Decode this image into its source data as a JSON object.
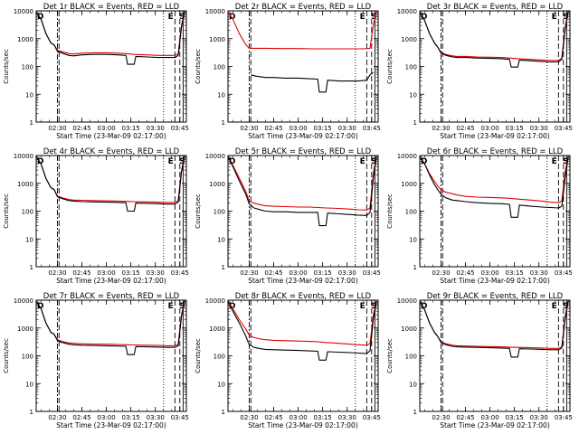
{
  "colors": {
    "events": "#000000",
    "lld": "#e00000",
    "background": "#ffffff"
  },
  "time_ticks": [
    "02:30",
    "02:45",
    "03:00",
    "03:15",
    "03:30",
    "03:45"
  ],
  "y_ticks": [
    "1",
    "10",
    "100",
    "1000",
    "10000"
  ],
  "ylabel": "Counts/sec",
  "xlabel": "Start Time (23-Mar-09 02:17:00)",
  "markers": [
    "D",
    "E",
    "S"
  ],
  "chart_data": [
    {
      "type": "line",
      "title": "Det 1r BLACK = Events, RED = LLD",
      "xlabel": "Start Time (23-Mar-09 02:17:00)",
      "ylabel": "Counts/sec",
      "ylim": [
        1,
        10000
      ],
      "yscale": "log",
      "series": [
        {
          "name": "Events",
          "x": [
            "02:17",
            "02:20",
            "02:23",
            "02:26",
            "02:28",
            "02:30",
            "02:33",
            "02:37",
            "02:40",
            "02:45",
            "02:52",
            "03:00",
            "03:07",
            "03:12",
            "03:13",
            "03:17",
            "03:18",
            "03:25",
            "03:32",
            "03:37",
            "03:42",
            "03:44",
            "03:46",
            "03:48"
          ],
          "values": [
            9000,
            5000,
            1500,
            700,
            600,
            350,
            300,
            250,
            240,
            260,
            270,
            270,
            260,
            250,
            120,
            120,
            230,
            220,
            210,
            210,
            210,
            250,
            2500,
            10000
          ]
        },
        {
          "name": "LLD",
          "x": [
            "02:17",
            "02:20",
            "02:23",
            "02:26",
            "02:28",
            "02:30",
            "02:33",
            "02:37",
            "02:40",
            "02:45",
            "02:52",
            "03:00",
            "03:07",
            "03:12",
            "03:17",
            "03:25",
            "03:32",
            "03:37",
            "03:42",
            "03:44",
            "03:46",
            "03:48"
          ],
          "values": [
            9000,
            5000,
            1500,
            700,
            600,
            380,
            340,
            290,
            280,
            300,
            310,
            310,
            300,
            290,
            270,
            260,
            250,
            250,
            250,
            280,
            3000,
            10000
          ]
        }
      ]
    },
    {
      "type": "line",
      "title": "Det 2r BLACK = Events, RED = LLD",
      "xlabel": "Start Time (23-Mar-09 02:17:00)",
      "ylabel": "Counts/sec",
      "ylim": [
        1,
        10000
      ],
      "yscale": "log",
      "series": [
        {
          "name": "Events",
          "x": [
            "02:31",
            "02:34",
            "02:40",
            "02:45",
            "02:52",
            "03:00",
            "03:07",
            "03:12",
            "03:13",
            "03:17",
            "03:18",
            "03:25",
            "03:32",
            "03:37",
            "03:42",
            "03:44",
            "03:46"
          ],
          "values": [
            50,
            45,
            40,
            40,
            38,
            38,
            36,
            35,
            12,
            12,
            32,
            30,
            30,
            30,
            32,
            50,
            60
          ]
        },
        {
          "name": "LLD",
          "x": [
            "02:17",
            "02:20",
            "02:24",
            "02:28",
            "02:30",
            "02:40",
            "02:50",
            "03:00",
            "03:10",
            "03:20",
            "03:30",
            "03:40",
            "03:44",
            "03:46",
            "03:48"
          ],
          "values": [
            9000,
            5000,
            1500,
            600,
            450,
            450,
            440,
            440,
            430,
            430,
            430,
            430,
            450,
            3000,
            10000
          ]
        }
      ]
    },
    {
      "type": "line",
      "title": "Det 3r BLACK = Events, RED = LLD",
      "xlabel": "Start Time (23-Mar-09 02:17:00)",
      "ylabel": "Counts/sec",
      "ylim": [
        1,
        10000
      ],
      "yscale": "log",
      "series": [
        {
          "name": "Events",
          "x": [
            "02:17",
            "02:20",
            "02:23",
            "02:26",
            "02:28",
            "02:30",
            "02:33",
            "02:37",
            "02:40",
            "02:45",
            "02:52",
            "03:00",
            "03:07",
            "03:12",
            "03:13",
            "03:17",
            "03:18",
            "03:25",
            "03:32",
            "03:37",
            "03:42",
            "03:44",
            "03:46",
            "03:48"
          ],
          "values": [
            9000,
            4500,
            1500,
            700,
            500,
            300,
            250,
            220,
            210,
            210,
            200,
            195,
            190,
            180,
            95,
            95,
            170,
            160,
            150,
            145,
            145,
            180,
            2000,
            10000
          ]
        },
        {
          "name": "LLD",
          "x": [
            "02:17",
            "02:20",
            "02:23",
            "02:26",
            "02:28",
            "02:30",
            "02:33",
            "02:37",
            "02:40",
            "02:45",
            "02:52",
            "03:00",
            "03:07",
            "03:12",
            "03:17",
            "03:25",
            "03:32",
            "03:37",
            "03:42",
            "03:44",
            "03:46",
            "03:48"
          ],
          "values": [
            9000,
            4500,
            1500,
            700,
            500,
            320,
            270,
            240,
            230,
            230,
            220,
            215,
            210,
            200,
            190,
            180,
            170,
            165,
            165,
            200,
            2500,
            10000
          ]
        }
      ]
    },
    {
      "type": "line",
      "title": "Det 4r BLACK = Events, RED = LLD",
      "xlabel": "Start Time (23-Mar-09 02:17:00)",
      "ylabel": "Counts/sec",
      "ylim": [
        1,
        10000
      ],
      "yscale": "log",
      "series": [
        {
          "name": "Events",
          "x": [
            "02:17",
            "02:20",
            "02:23",
            "02:26",
            "02:28",
            "02:30",
            "02:33",
            "02:37",
            "02:40",
            "02:45",
            "02:52",
            "03:00",
            "03:07",
            "03:12",
            "03:13",
            "03:17",
            "03:18",
            "03:25",
            "03:32",
            "03:37",
            "03:42",
            "03:44",
            "03:46",
            "03:48"
          ],
          "values": [
            9000,
            5000,
            1500,
            700,
            600,
            330,
            280,
            240,
            230,
            220,
            215,
            210,
            205,
            200,
            100,
            100,
            195,
            190,
            185,
            180,
            180,
            210,
            2500,
            10000
          ]
        },
        {
          "name": "LLD",
          "x": [
            "02:17",
            "02:20",
            "02:23",
            "02:26",
            "02:28",
            "02:30",
            "02:33",
            "02:37",
            "02:40",
            "02:45",
            "02:52",
            "03:00",
            "03:07",
            "03:12",
            "03:17",
            "03:25",
            "03:32",
            "03:37",
            "03:42",
            "03:44",
            "03:46",
            "03:48"
          ],
          "values": [
            9000,
            5000,
            1500,
            700,
            600,
            350,
            300,
            260,
            250,
            245,
            240,
            235,
            230,
            225,
            220,
            215,
            210,
            205,
            205,
            240,
            3000,
            10000
          ]
        }
      ]
    },
    {
      "type": "line",
      "title": "Det 5r BLACK = Events, RED = LLD",
      "xlabel": "Start Time (23-Mar-09 02:17:00)",
      "ylabel": "Counts/sec",
      "ylim": [
        1,
        10000
      ],
      "yscale": "log",
      "series": [
        {
          "name": "Events",
          "x": [
            "02:17",
            "02:20",
            "02:24",
            "02:28",
            "02:30",
            "02:33",
            "02:37",
            "02:40",
            "02:45",
            "02:52",
            "03:00",
            "03:07",
            "03:12",
            "03:13",
            "03:17",
            "03:18",
            "03:25",
            "03:32",
            "03:37",
            "03:42",
            "03:44",
            "03:46",
            "03:48"
          ],
          "values": [
            9000,
            4000,
            1200,
            400,
            180,
            130,
            110,
            100,
            95,
            95,
            90,
            90,
            90,
            30,
            30,
            85,
            80,
            75,
            72,
            70,
            90,
            1500,
            9000
          ]
        },
        {
          "name": "LLD",
          "x": [
            "02:17",
            "02:20",
            "02:24",
            "02:28",
            "02:30",
            "02:33",
            "02:37",
            "02:40",
            "02:45",
            "02:52",
            "03:00",
            "03:07",
            "03:12",
            "03:17",
            "03:25",
            "03:32",
            "03:37",
            "03:42",
            "03:44",
            "03:46",
            "03:48"
          ],
          "values": [
            9000,
            4500,
            1500,
            500,
            230,
            190,
            170,
            155,
            150,
            145,
            140,
            140,
            135,
            130,
            125,
            118,
            112,
            110,
            130,
            2200,
            10000
          ]
        }
      ]
    },
    {
      "type": "line",
      "title": "Det 6r BLACK = Events, RED = LLD",
      "xlabel": "Start Time (23-Mar-09 02:17:00)",
      "ylabel": "Counts/sec",
      "ylim": [
        1,
        10000
      ],
      "yscale": "log",
      "series": [
        {
          "name": "Events",
          "x": [
            "02:17",
            "02:20",
            "02:23",
            "02:26",
            "02:28",
            "02:30",
            "02:33",
            "02:37",
            "02:40",
            "02:45",
            "02:52",
            "03:00",
            "03:07",
            "03:12",
            "03:13",
            "03:17",
            "03:18",
            "03:25",
            "03:32",
            "03:37",
            "03:42",
            "03:44",
            "03:46",
            "03:48"
          ],
          "values": [
            9000,
            5000,
            2000,
            900,
            600,
            400,
            300,
            250,
            240,
            220,
            200,
            190,
            185,
            175,
            60,
            60,
            165,
            150,
            140,
            135,
            130,
            150,
            1500,
            9000
          ]
        },
        {
          "name": "LLD",
          "x": [
            "02:17",
            "02:20",
            "02:23",
            "02:26",
            "02:28",
            "02:30",
            "02:33",
            "02:37",
            "02:40",
            "02:45",
            "02:52",
            "03:00",
            "03:07",
            "03:12",
            "03:17",
            "03:25",
            "03:32",
            "03:37",
            "03:42",
            "03:44",
            "03:46",
            "03:48"
          ],
          "values": [
            9000,
            5000,
            2200,
            1200,
            800,
            600,
            480,
            420,
            380,
            340,
            320,
            310,
            300,
            290,
            270,
            250,
            230,
            210,
            200,
            230,
            2500,
            10000
          ]
        }
      ]
    },
    {
      "type": "line",
      "title": "Det 7r BLACK = Events, RED = LLD",
      "xlabel": "Start Time (23-Mar-09 02:17:00)",
      "ylabel": "Counts/sec",
      "ylim": [
        1,
        10000
      ],
      "yscale": "log",
      "series": [
        {
          "name": "Events",
          "x": [
            "02:17",
            "02:20",
            "02:23",
            "02:26",
            "02:28",
            "02:30",
            "02:33",
            "02:37",
            "02:40",
            "02:45",
            "02:52",
            "03:00",
            "03:07",
            "03:12",
            "03:13",
            "03:17",
            "03:18",
            "03:25",
            "03:32",
            "03:37",
            "03:42",
            "03:44",
            "03:46",
            "03:48"
          ],
          "values": [
            9000,
            5000,
            1500,
            700,
            600,
            350,
            300,
            260,
            250,
            240,
            235,
            230,
            225,
            220,
            110,
            110,
            215,
            210,
            205,
            200,
            200,
            230,
            2500,
            10000
          ]
        },
        {
          "name": "LLD",
          "x": [
            "02:17",
            "02:20",
            "02:23",
            "02:26",
            "02:28",
            "02:30",
            "02:33",
            "02:37",
            "02:40",
            "02:45",
            "02:52",
            "03:00",
            "03:07",
            "03:12",
            "03:17",
            "03:25",
            "03:32",
            "03:37",
            "03:42",
            "03:44",
            "03:46",
            "03:48"
          ],
          "values": [
            9000,
            5000,
            1500,
            700,
            600,
            380,
            330,
            290,
            280,
            270,
            265,
            260,
            255,
            250,
            245,
            240,
            235,
            230,
            230,
            260,
            3000,
            10000
          ]
        }
      ]
    },
    {
      "type": "line",
      "title": "Det 8r BLACK = Events, RED = LLD",
      "xlabel": "Start Time (23-Mar-09 02:17:00)",
      "ylabel": "Counts/sec",
      "ylim": [
        1,
        10000
      ],
      "yscale": "log",
      "series": [
        {
          "name": "Events",
          "x": [
            "02:17",
            "02:20",
            "02:24",
            "02:28",
            "02:30",
            "02:33",
            "02:37",
            "02:40",
            "02:45",
            "02:52",
            "03:00",
            "03:07",
            "03:12",
            "03:13",
            "03:17",
            "03:18",
            "03:25",
            "03:32",
            "03:37",
            "03:42",
            "03:44",
            "03:46",
            "03:48"
          ],
          "values": [
            9000,
            4000,
            1500,
            500,
            250,
            200,
            180,
            170,
            165,
            160,
            155,
            150,
            145,
            70,
            70,
            140,
            135,
            130,
            125,
            120,
            150,
            2000,
            9000
          ]
        },
        {
          "name": "LLD",
          "x": [
            "02:17",
            "02:20",
            "02:24",
            "02:28",
            "02:30",
            "02:33",
            "02:37",
            "02:40",
            "02:45",
            "02:52",
            "03:00",
            "03:07",
            "03:12",
            "03:17",
            "03:25",
            "03:32",
            "03:37",
            "03:42",
            "03:44",
            "03:46",
            "03:48"
          ],
          "values": [
            9000,
            5000,
            2000,
            900,
            550,
            450,
            400,
            380,
            360,
            350,
            340,
            330,
            320,
            300,
            280,
            260,
            250,
            240,
            270,
            2800,
            10000
          ]
        }
      ]
    },
    {
      "type": "line",
      "title": "Det 9r BLACK = Events, RED = LLD",
      "xlabel": "Start Time (23-Mar-09 02:17:00)",
      "ylabel": "Counts/sec",
      "ylim": [
        1,
        10000
      ],
      "yscale": "log",
      "series": [
        {
          "name": "Events",
          "x": [
            "02:17",
            "02:20",
            "02:23",
            "02:26",
            "02:28",
            "02:30",
            "02:33",
            "02:37",
            "02:40",
            "02:45",
            "02:52",
            "03:00",
            "03:07",
            "03:12",
            "03:13",
            "03:17",
            "03:18",
            "03:25",
            "03:32",
            "03:37",
            "03:42",
            "03:44",
            "03:46",
            "03:48"
          ],
          "values": [
            9000,
            4500,
            1500,
            700,
            500,
            300,
            250,
            220,
            210,
            205,
            200,
            195,
            190,
            185,
            90,
            90,
            180,
            175,
            170,
            165,
            165,
            190,
            2000,
            10000
          ]
        },
        {
          "name": "LLD",
          "x": [
            "02:17",
            "02:20",
            "02:23",
            "02:26",
            "02:28",
            "02:30",
            "02:33",
            "02:37",
            "02:40",
            "02:45",
            "02:52",
            "03:00",
            "03:07",
            "03:12",
            "03:17",
            "03:25",
            "03:32",
            "03:37",
            "03:42",
            "03:44",
            "03:46",
            "03:48"
          ],
          "values": [
            9000,
            4500,
            1500,
            700,
            500,
            320,
            270,
            240,
            230,
            225,
            220,
            215,
            210,
            205,
            200,
            195,
            190,
            185,
            185,
            210,
            2500,
            10000
          ]
        }
      ]
    }
  ]
}
